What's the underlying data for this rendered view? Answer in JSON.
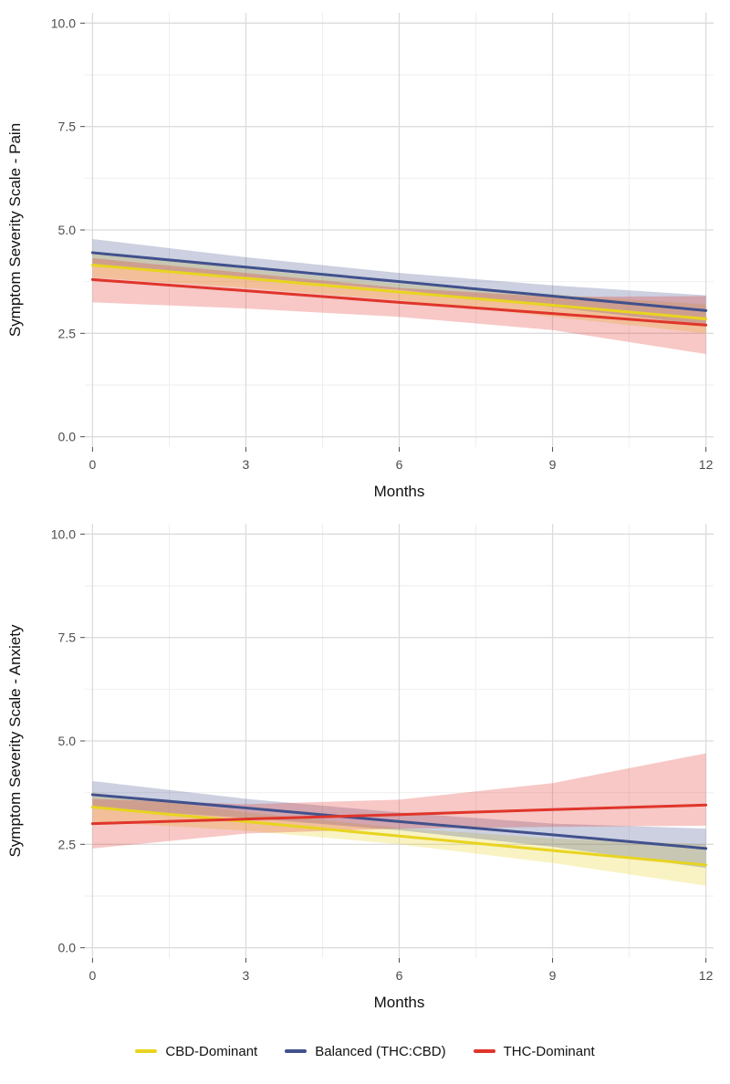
{
  "legend": {
    "items": [
      {
        "label": "CBD-Dominant",
        "color": "#E8D420"
      },
      {
        "label": "Balanced (THC:CBD)",
        "color": "#41518C"
      },
      {
        "label": "THC-Dominant",
        "color": "#E0352B"
      }
    ]
  },
  "chart_data": [
    {
      "type": "line",
      "title": "",
      "xlabel": "Months",
      "ylabel": "Symptom Severity Scale - Pain",
      "xlim": [
        0,
        12
      ],
      "ylim": [
        0,
        10
      ],
      "x_ticks": [
        0,
        3,
        6,
        9,
        12
      ],
      "y_ticks": [
        "0.0",
        "2.5",
        "5.0",
        "7.5",
        "10.0"
      ],
      "grid": "on",
      "x": [
        0,
        3,
        6,
        9,
        12
      ],
      "series": [
        {
          "name": "CBD-Dominant",
          "color": "#E8D420",
          "values": [
            4.15,
            3.83,
            3.5,
            3.18,
            2.85
          ],
          "ci_low": [
            3.85,
            3.6,
            3.3,
            2.9,
            2.5
          ],
          "ci_high": [
            4.45,
            4.06,
            3.7,
            3.44,
            3.2
          ]
        },
        {
          "name": "Balanced (THC:CBD)",
          "color": "#41518C",
          "values": [
            4.45,
            4.1,
            3.75,
            3.4,
            3.05
          ],
          "ci_low": [
            4.12,
            3.86,
            3.55,
            3.14,
            2.7
          ],
          "ci_high": [
            4.78,
            4.34,
            3.96,
            3.66,
            3.42
          ]
        },
        {
          "name": "THC-Dominant",
          "color": "#E0352B",
          "values": [
            3.8,
            3.53,
            3.25,
            2.98,
            2.7
          ],
          "ci_low": [
            3.25,
            3.1,
            2.9,
            2.58,
            2.0
          ],
          "ci_high": [
            4.32,
            3.96,
            3.6,
            3.38,
            3.4
          ]
        }
      ]
    },
    {
      "type": "line",
      "title": "",
      "xlabel": "Months",
      "ylabel": "Symptom Severity Scale - Anxiety",
      "xlim": [
        0,
        12
      ],
      "ylim": [
        0,
        10
      ],
      "x_ticks": [
        0,
        3,
        6,
        9,
        12
      ],
      "y_ticks": [
        "0.0",
        "2.5",
        "5.0",
        "7.5",
        "10.0"
      ],
      "grid": "on",
      "x": [
        0,
        3,
        6,
        9,
        12
      ],
      "series": [
        {
          "name": "CBD-Dominant",
          "color": "#E8D420",
          "values": [
            3.4,
            3.05,
            2.7,
            2.35,
            2.0
          ],
          "ci_low": [
            3.05,
            2.83,
            2.5,
            2.05,
            1.5
          ],
          "ci_high": [
            3.75,
            3.28,
            2.9,
            2.64,
            2.5
          ]
        },
        {
          "name": "Balanced (THC:CBD)",
          "color": "#41518C",
          "values": [
            3.7,
            3.38,
            3.05,
            2.73,
            2.4
          ],
          "ci_low": [
            3.37,
            3.14,
            2.84,
            2.44,
            1.93
          ],
          "ci_high": [
            4.03,
            3.6,
            3.27,
            3.0,
            2.88
          ]
        },
        {
          "name": "THC-Dominant",
          "color": "#E0352B",
          "values": [
            3.0,
            3.11,
            3.22,
            3.34,
            3.45
          ],
          "ci_low": [
            2.4,
            2.76,
            2.88,
            2.92,
            2.95
          ],
          "ci_high": [
            3.6,
            3.47,
            3.58,
            3.98,
            4.7
          ]
        }
      ]
    }
  ]
}
